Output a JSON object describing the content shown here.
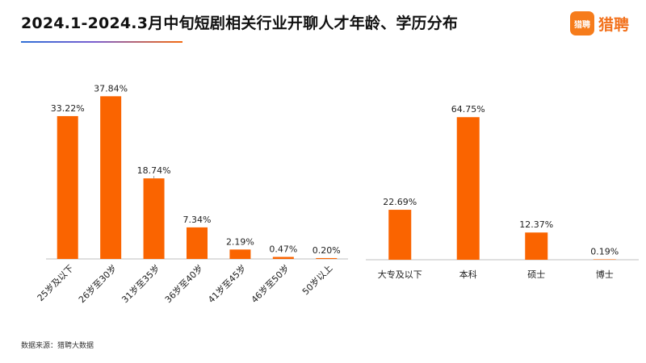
{
  "header": {
    "title": "2024.1-2024.3月中旬短剧相关行业开聊人才年龄、学历分布"
  },
  "logo": {
    "badge_text": "猎聘",
    "name": "猎聘",
    "color": "#f67c1b"
  },
  "footer": {
    "source": "数据来源：猎聘大数据"
  },
  "colors": {
    "bar": "#fa6400",
    "axis": "#bfbfbf"
  },
  "chart_data": [
    {
      "type": "bar",
      "categories": [
        "25岁及以下",
        "26岁至30岁",
        "31岁至35岁",
        "36岁至40岁",
        "41岁至45岁",
        "46岁至50岁",
        "50岁以上"
      ],
      "values": [
        33.22,
        37.84,
        18.74,
        7.34,
        2.19,
        0.47,
        0.2
      ],
      "labels": [
        "33.22%",
        "37.84%",
        "18.74%",
        "7.34%",
        "2.19%",
        "0.47%",
        "0.20%"
      ],
      "title": "",
      "xlabel": "",
      "ylabel": "",
      "ylim": [
        0,
        40
      ],
      "grid": false,
      "legend": "none"
    },
    {
      "type": "bar",
      "categories": [
        "大专及以下",
        "本科",
        "硕士",
        "博士"
      ],
      "values": [
        22.69,
        64.75,
        12.37,
        0.19
      ],
      "labels": [
        "22.69%",
        "64.75%",
        "12.37%",
        "0.19%"
      ],
      "title": "",
      "xlabel": "",
      "ylabel": "",
      "ylim": [
        0,
        70
      ],
      "grid": false,
      "legend": "none"
    }
  ]
}
